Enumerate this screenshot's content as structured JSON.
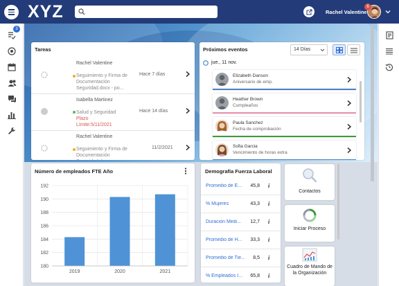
{
  "header": {
    "logo": "XYZ",
    "search_placeholder": "",
    "user_name": "Rachel Valentine",
    "notification_count": "6"
  },
  "leftbar": {
    "tasks_badge": "3",
    "icons": [
      "tasks-icon",
      "target-icon",
      "calendar-icon",
      "people-icon",
      "chat-icon",
      "bar-chart-icon",
      "wrench-icon"
    ]
  },
  "rightbar": {
    "icons": [
      "notes-icon",
      "list-icon",
      "history-icon"
    ]
  },
  "tasks": {
    "title": "Tareas",
    "items": [
      {
        "name": "Rachel Valentine",
        "desc": "Seguimiento y Firma de Documentación Seguridad.docx - po...",
        "when": "Hace 7 días",
        "status_color": "#f0ad1f"
      },
      {
        "name": "Isabella Martinez",
        "desc": "Salud y Seguridad",
        "late": "Plazo Límite:5/11/2021",
        "when": "Hace 14 días",
        "status_color": "#5cb85c"
      },
      {
        "name": "Rachel Valentine",
        "desc": "Seguimiento y Firma de Documentación Seguridad.docx - po...",
        "when": "11/2/2021",
        "status_color": "#f0ad1f"
      }
    ]
  },
  "events": {
    "title": "Próximos eventos",
    "range_select": "14 Días",
    "date_label": "jue., 11 nov.",
    "items": [
      {
        "name": "Elizabeth Danson",
        "desc": "Aniversario de emp.",
        "color": "#4a7fc8"
      },
      {
        "name": "Heather Brown",
        "desc": "Cumpleaños",
        "color": "#e98fb0"
      },
      {
        "name": "Paula Sanchez",
        "desc": "Fecha de comprobación",
        "color": "#3d9a3d"
      },
      {
        "name": "Sofia Garcia",
        "desc": "Vencimiento de horas extra",
        "color": "#4a7fc8"
      }
    ]
  },
  "employees_chart": {
    "title": "Número de empleados FTE Año",
    "menu_icon": "more-vert-icon"
  },
  "chart_data": {
    "type": "bar",
    "title": "Número de empleados FTE Año",
    "categories": [
      "2019",
      "2020",
      "2021"
    ],
    "values": [
      184.3,
      190.3,
      190.7
    ],
    "ylim": [
      180,
      192
    ],
    "yticks": [
      "192",
      "190",
      "188",
      "186",
      "184",
      "182",
      "180"
    ],
    "grid": true,
    "bar_color": "#4f93d6"
  },
  "demographics": {
    "title": "Demografía Fuerza Laboral",
    "rows": [
      {
        "label": "Promedio de E...",
        "value": "45,8"
      },
      {
        "label": "% Mujeres",
        "value": "43,3"
      },
      {
        "label": "Duración Medi...",
        "value": "12,7"
      },
      {
        "label": "Promedio de H...",
        "value": "33,3"
      },
      {
        "label": "Promedio de Tie...",
        "value": "8,5"
      },
      {
        "label": "% Empleados I...",
        "value": "65,8"
      }
    ],
    "info_glyph": "i"
  },
  "tiles": [
    {
      "label": "Contactos",
      "icon": "magnifier-icon"
    },
    {
      "label": "Iniciar Proceso",
      "icon": "process-cycle-icon"
    },
    {
      "label": "Cuadro de Mando de la Organización",
      "icon": "dashboard-chart-icon"
    }
  ]
}
